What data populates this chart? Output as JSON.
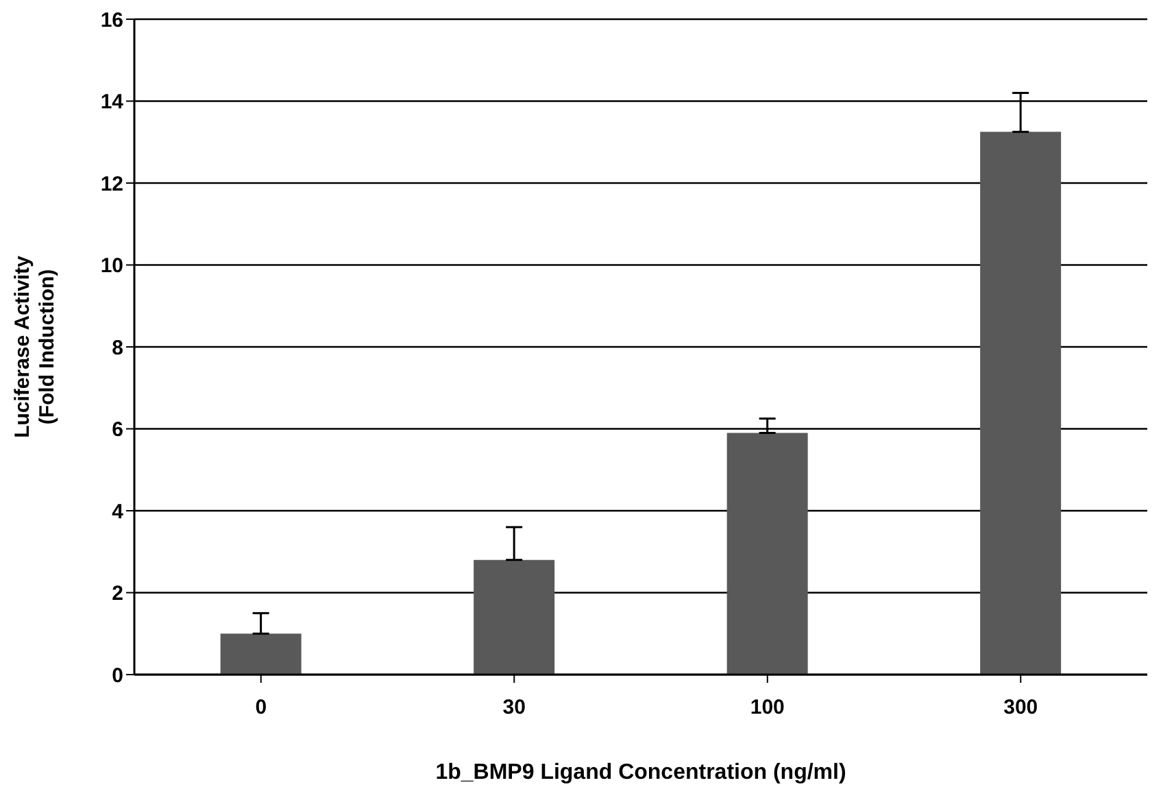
{
  "chart_data": {
    "type": "bar",
    "xlabel": "1b_BMP9 Ligand Concentration (ng/ml)",
    "ylabel": "Luciferase Activity\n(Fold Induction)",
    "categories": [
      "0",
      "30",
      "100",
      "300"
    ],
    "values": [
      1.0,
      2.8,
      5.9,
      13.25
    ],
    "errors": [
      [
        1.0,
        1.5
      ],
      [
        2.8,
        3.6
      ],
      [
        5.9,
        6.25
      ],
      [
        13.25,
        14.2
      ]
    ],
    "color": "#595959",
    "ylim": [
      0,
      16
    ],
    "yticks": [
      0,
      2,
      4,
      6,
      8,
      10,
      12,
      14,
      16
    ],
    "grid": "y",
    "legend": false
  }
}
